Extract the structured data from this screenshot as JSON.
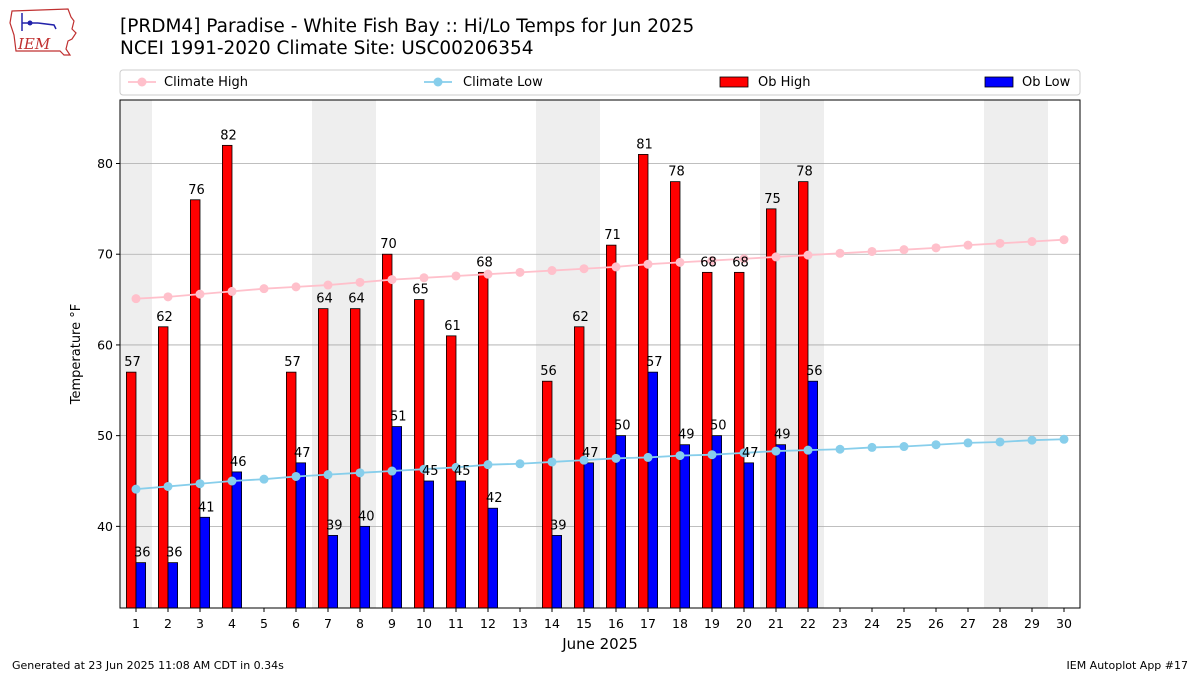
{
  "logo_text": "IEM",
  "header": {
    "title_line1": "[PRDM4] Paradise - White Fish Bay :: Hi/Lo Temps for Jun 2025",
    "title_line2": "NCEI 1991-2020 Climate Site: USC00206354"
  },
  "footer": {
    "left": "Generated at 23 Jun 2025 11:08 AM CDT in 0.34s",
    "right": "IEM Autoplot App #17"
  },
  "colors": {
    "ob_high": "#ff0000",
    "ob_low": "#0000ff",
    "climate_high": "#ffc0cb",
    "climate_low": "#87ceeb",
    "weekend_band": "#eeeeee",
    "grid": "#aaaaaa"
  },
  "chart_data": {
    "type": "bar",
    "xlabel": "June 2025",
    "ylabel": "Temperature °F",
    "ylim": [
      31,
      87
    ],
    "yticks": [
      40,
      50,
      60,
      70,
      80
    ],
    "grid": "horizontal",
    "legend_placement": "top, above plot",
    "categories": [
      "1",
      "2",
      "3",
      "4",
      "5",
      "6",
      "7",
      "8",
      "9",
      "10",
      "11",
      "12",
      "13",
      "14",
      "15",
      "16",
      "17",
      "18",
      "19",
      "20",
      "21",
      "22",
      "23",
      "24",
      "25",
      "26",
      "27",
      "28",
      "29",
      "30"
    ],
    "weekend_days": [
      1,
      7,
      8,
      14,
      15,
      21,
      22,
      28,
      29
    ],
    "series": [
      {
        "name": "Climate High",
        "kind": "line",
        "values": [
          65.1,
          65.3,
          65.6,
          65.9,
          66.2,
          66.4,
          66.6,
          66.9,
          67.2,
          67.4,
          67.6,
          67.8,
          68.0,
          68.2,
          68.4,
          68.6,
          68.9,
          69.1,
          69.3,
          69.5,
          69.7,
          69.9,
          70.1,
          70.3,
          70.5,
          70.7,
          71.0,
          71.2,
          71.4,
          71.6
        ]
      },
      {
        "name": "Climate Low",
        "kind": "line",
        "values": [
          44.1,
          44.4,
          44.7,
          45.0,
          45.2,
          45.5,
          45.7,
          45.9,
          46.1,
          46.3,
          46.5,
          46.8,
          46.9,
          47.1,
          47.3,
          47.5,
          47.6,
          47.8,
          47.9,
          48.1,
          48.3,
          48.4,
          48.5,
          48.7,
          48.8,
          49.0,
          49.2,
          49.3,
          49.5,
          49.6
        ]
      },
      {
        "name": "Ob High",
        "kind": "bar",
        "values": [
          57,
          62,
          76,
          82,
          null,
          57,
          64,
          64,
          70,
          65,
          61,
          68,
          null,
          56,
          62,
          71,
          81,
          78,
          68,
          68,
          75,
          78,
          null,
          null,
          null,
          null,
          null,
          null,
          null,
          null
        ]
      },
      {
        "name": "Ob Low",
        "kind": "bar",
        "values": [
          36,
          36,
          41,
          46,
          null,
          47,
          39,
          40,
          51,
          45,
          45,
          42,
          null,
          39,
          47,
          50,
          57,
          49,
          50,
          47,
          49,
          56,
          null,
          null,
          null,
          null,
          null,
          null,
          null,
          null
        ]
      }
    ]
  }
}
